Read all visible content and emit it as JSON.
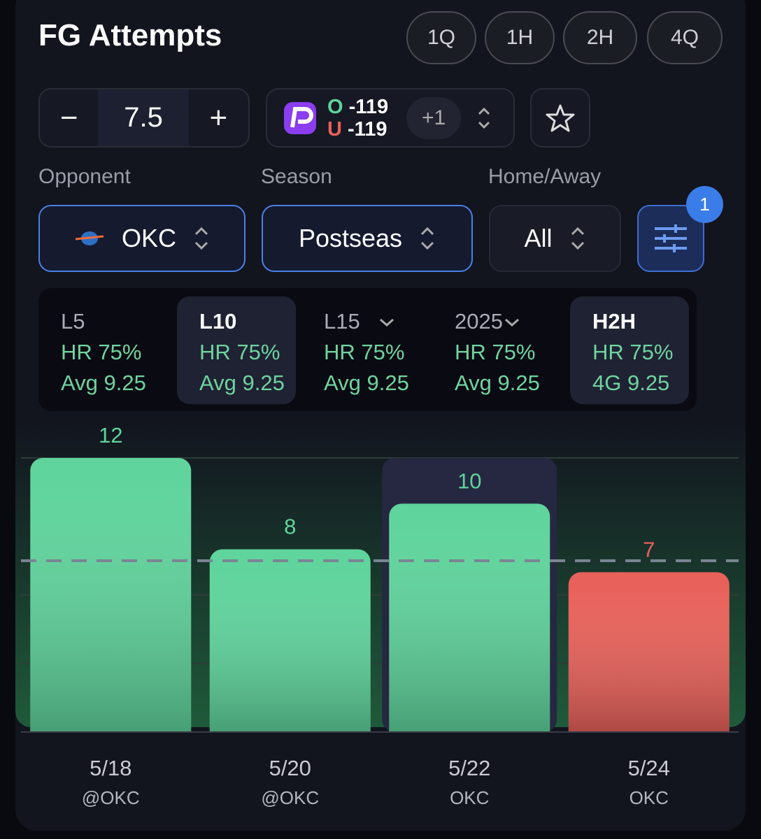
{
  "header": {
    "title": "FG Attempts",
    "period_tabs": [
      "1Q",
      "1H",
      "2H",
      "4Q"
    ]
  },
  "line_stepper": {
    "minus": "−",
    "plus": "+"
  },
  "odds": {
    "over_label": "O",
    "over_price": "-119",
    "under_label": "U",
    "under_price": "-119",
    "more_books": "+1"
  },
  "filters": [
    {
      "label": "Opponent",
      "value": "OKC"
    },
    {
      "label": "Season",
      "value": "Postseas"
    },
    {
      "label": "Home/Away",
      "value": "All"
    }
  ],
  "filter_badge": "1",
  "splits": [
    {
      "label": "L5",
      "line1": "HR 75%",
      "line2": "Avg 9.25"
    },
    {
      "label": "L10",
      "line1": "HR 75%",
      "line2": "Avg 9.25"
    },
    {
      "label": "L15",
      "line1": "HR 75%",
      "line2": "Avg 9.25"
    },
    {
      "label": "2025",
      "line1": "HR 75%",
      "line2": "Avg 9.25"
    },
    {
      "label": "H2H",
      "line1": "HR 75%",
      "line2": "4G 9.25"
    }
  ],
  "chart_data": {
    "type": "bar",
    "categories": [
      "5/18",
      "5/20",
      "5/22",
      "5/24"
    ],
    "sublabels": [
      "@OKC",
      "@OKC",
      "OKC",
      "OKC"
    ],
    "values": [
      12,
      8,
      10,
      7
    ],
    "threshold": 7.5,
    "ylim": [
      0,
      12
    ],
    "yticks": [
      3,
      6,
      12
    ],
    "grid": true,
    "over_color": "#5fd49c",
    "under_color": "#e8615a",
    "highlight_index": 2
  }
}
